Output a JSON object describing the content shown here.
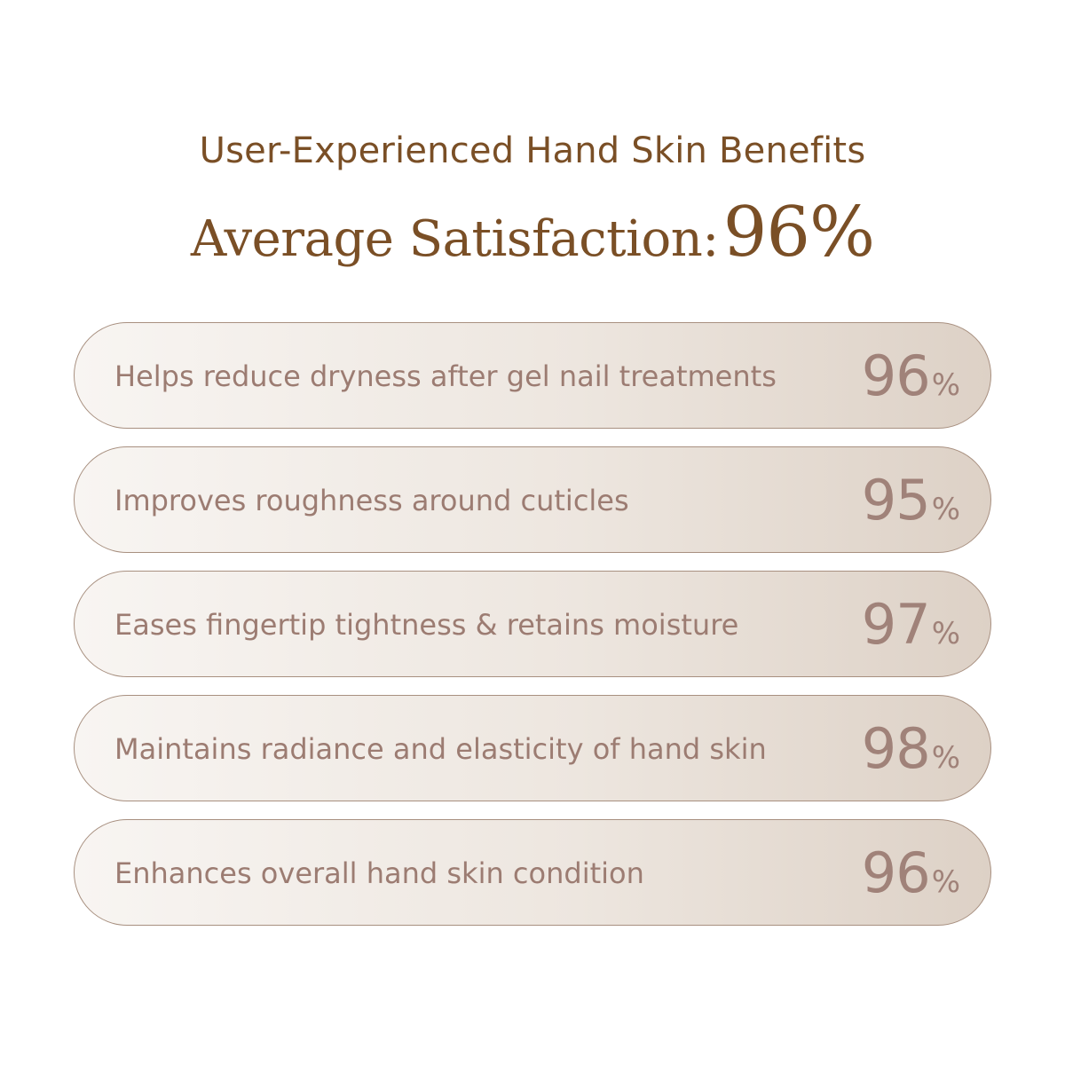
{
  "header": {
    "subtitle": "User-Experienced Hand Skin Benefits",
    "headline_label": "Average Satisfaction:",
    "headline_value": "96%"
  },
  "colors": {
    "title_brown": "#7a4f26",
    "pill_text": "#9c7c72",
    "pill_value": "#a08279",
    "pill_border": "#a89080"
  },
  "benefits": [
    {
      "label": "Helps reduce dryness after gel nail treatments",
      "value": "96",
      "unit": "%"
    },
    {
      "label": "Improves roughness around cuticles",
      "value": "95",
      "unit": "%"
    },
    {
      "label": "Eases fingertip tightness & retains moisture",
      "value": "97",
      "unit": "%"
    },
    {
      "label": "Maintains radiance and elasticity of hand skin",
      "value": "98",
      "unit": "%"
    },
    {
      "label": "Enhances overall hand skin condition",
      "value": "96",
      "unit": "%"
    }
  ]
}
